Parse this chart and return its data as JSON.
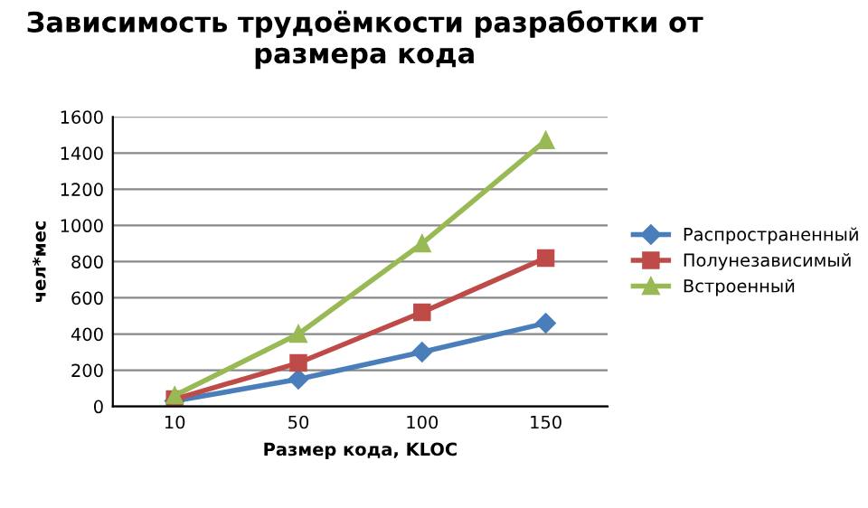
{
  "chart_data": {
    "type": "line",
    "title": "Зависимость трудоёмкости разработки от\nразмера кода",
    "xlabel": "Размер кода, KLOC",
    "ylabel": "чел*мес",
    "categories": [
      "10",
      "50",
      "100",
      "150"
    ],
    "series": [
      {
        "name": "Распространенный",
        "color": "#4a7ebb",
        "marker": "diamond",
        "values": [
          30,
          150,
          300,
          460
        ]
      },
      {
        "name": "Полунезависимый",
        "color": "#be4b48",
        "marker": "square",
        "values": [
          40,
          240,
          520,
          820
        ]
      },
      {
        "name": "Встроенный",
        "color": "#98b954",
        "marker": "triangle",
        "values": [
          60,
          400,
          900,
          1470
        ]
      }
    ],
    "ylim": [
      0,
      1600
    ],
    "yticks": [
      0,
      200,
      400,
      600,
      800,
      1000,
      1200,
      1400,
      1600
    ],
    "grid": "y",
    "legend": "right"
  }
}
